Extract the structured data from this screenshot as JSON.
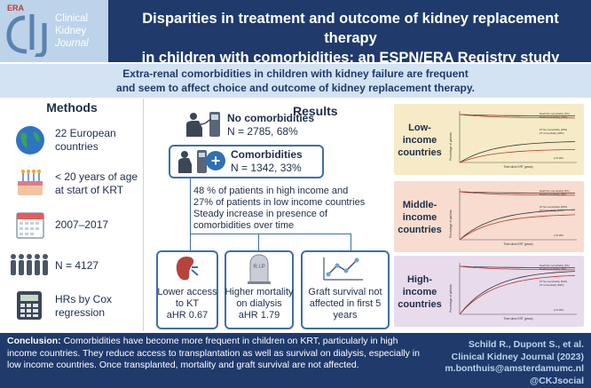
{
  "logo": {
    "brand": "ERA",
    "initials": "ckj",
    "line1": "Clinical",
    "line2": "Kidney",
    "line3": "Journal"
  },
  "header": {
    "title_line1": "Disparities in treatment and outcome of kidney replacement therapy",
    "title_line2": "in children with comorbidities: an ESPN/ERA Registry study"
  },
  "subtitle": {
    "line1": "Extra-renal comorbidities in children with kidney failure are frequent",
    "line2": "and seem to affect choice and outcome of kidney replacement therapy."
  },
  "methods": {
    "title": "Methods",
    "items": [
      {
        "icon": "globe-icon",
        "line1": "22 European",
        "line2": "countries"
      },
      {
        "icon": "birthday-cake-icon",
        "line1": "< 20 years of age",
        "line2": "at start of KRT"
      },
      {
        "icon": "calendar-icon",
        "line1": "2007–2017",
        "line2": ""
      },
      {
        "icon": "people-icon",
        "line1": "N = 4127",
        "line2": ""
      },
      {
        "icon": "calculator-icon",
        "line1": "HRs by Cox",
        "line2": "regression"
      }
    ]
  },
  "results": {
    "title": "Results",
    "no_comorb": {
      "label": "No comorbidities",
      "n": "N = 2785, 68%"
    },
    "comorb": {
      "label": "Comorbidities",
      "n": "N = 1342, 33%"
    },
    "note_line1": "48 % of patients in high income and",
    "note_line2": "27% of patients in low income countries",
    "note_line3": "Steady increase in presence of",
    "note_line4": "comorbidities over time",
    "outcomes": [
      {
        "icon": "kidney-icon",
        "line1": "Lower access",
        "line2": "to KT",
        "line3": "aHR 0.67"
      },
      {
        "icon": "gravestone-icon",
        "line1": "Higher mortality",
        "line2": "on dialysis",
        "line3": "aHR 1.79"
      },
      {
        "icon": "line-graph-icon",
        "line1": "Graft survival not",
        "line2": "affected in first 5",
        "line3": "years"
      }
    ],
    "gravestone_text": "R.I.P"
  },
  "countries": [
    {
      "line1": "Low-",
      "line2": "income",
      "line3": "countries",
      "bg": "#f6ebc6",
      "ylabel": "Percentage of patients",
      "xlabel": "Time since KRT (years)",
      "legend": [
        "Death No comorbidity (4%)",
        "Death Comorbidity (10%)",
        "KT No comorbidity (45%)",
        "KT Comorbidity (28%)"
      ],
      "pvalue": "p<0.001"
    },
    {
      "line1": "Middle-",
      "line2": "income",
      "line3": "countries",
      "bg": "#f7dccf",
      "ylabel": "Percentage of patients",
      "xlabel": "Time since KRT (years)",
      "legend": [
        "Death No comorbidity (5%)",
        "Death Comorbidity (9%)",
        "KT No comorbidity (65%)",
        "KT Comorbidity (54%)"
      ],
      "pvalue": "p<0.001"
    },
    {
      "line1": "High-",
      "line2": "income",
      "line3": "countries",
      "bg": "#e8dbec",
      "ylabel": "Percentage of patients",
      "xlabel": "Time since KRT (years)",
      "legend": [
        "Death No comorbidity (3%)",
        "Death Comorbidity (5%)",
        "KT No comorbidity (93%)",
        "KT Comorbidity (84%)"
      ],
      "pvalue": "p<0.001"
    }
  ],
  "footer": {
    "conclusion_label": "Conclusion:",
    "conclusion_text": " Comorbidities have become more frequent in children on KRT, particularly in high income countries. They reduce access to transplantation as well as survival on dialysis, especially in low income countries. Once transplanted, mortality and graft survival are not affected.",
    "authors": "Schild R., Dupont S., et al.",
    "journal": "Clinical Kidney Journal (2023)",
    "email": "m.bonthuis@amsterdamumc.nl",
    "handle": "@CKJsocial"
  },
  "colors": {
    "navy": "#1f3a6b",
    "accent": "#3e6fa8",
    "light_blue": "#d3e3f3"
  }
}
